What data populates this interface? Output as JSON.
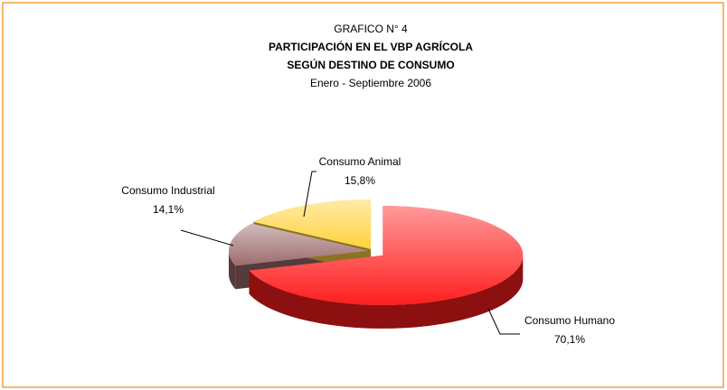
{
  "chart_data": {
    "type": "pie",
    "title": [
      "GRAFICO N° 4",
      "PARTICIPACIÓN EN EL VBP AGRÍCOLA",
      "SEGÚN DESTINO DE CONSUMO"
    ],
    "subtitle": "Enero - Septiembre 2006",
    "categories": [
      "Consumo Humano",
      "Consumo Industrial",
      "Consumo Animal"
    ],
    "values": [
      70.1,
      14.1,
      15.8
    ],
    "value_labels": [
      "70,1%",
      "14,1%",
      "15,8%"
    ],
    "colors": [
      "#ff1e1e",
      "#9c6c6c",
      "#ffd23c"
    ]
  }
}
